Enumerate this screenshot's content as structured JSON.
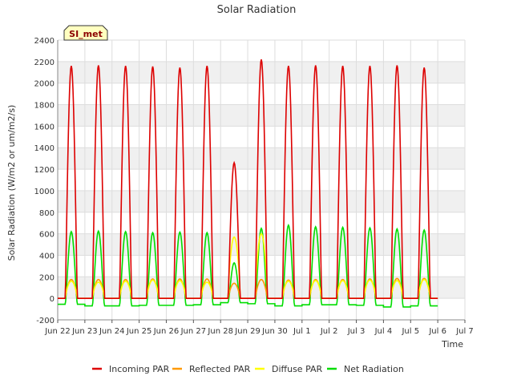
{
  "chart_data": {
    "type": "line",
    "title": "Solar Radiation",
    "xlabel": "Time",
    "ylabel": "Solar Radiation (W/m2 or um/m2/s)",
    "badge": "SI_met",
    "xlim": [
      0,
      15
    ],
    "ylim": [
      -200,
      2400
    ],
    "yticks": [
      -200,
      0,
      200,
      400,
      600,
      800,
      1000,
      1200,
      1400,
      1600,
      1800,
      2000,
      2200,
      2400
    ],
    "xticks": [
      {
        "pos": 0,
        "label": "Jun 22"
      },
      {
        "pos": 1,
        "label": "Jun 23"
      },
      {
        "pos": 2,
        "label": "Jun 24"
      },
      {
        "pos": 3,
        "label": "Jun 25"
      },
      {
        "pos": 4,
        "label": "Jun 26"
      },
      {
        "pos": 5,
        "label": "Jun 27"
      },
      {
        "pos": 6,
        "label": "Jun 28"
      },
      {
        "pos": 7,
        "label": "Jun 29"
      },
      {
        "pos": 8,
        "label": "Jun 30"
      },
      {
        "pos": 9,
        "label": "Jul 1"
      },
      {
        "pos": 10,
        "label": "Jul 2"
      },
      {
        "pos": 11,
        "label": "Jul 3"
      },
      {
        "pos": 12,
        "label": "Jul 4"
      },
      {
        "pos": 13,
        "label": "Jul 5"
      },
      {
        "pos": 14,
        "label": "Jul 6"
      },
      {
        "pos": 15,
        "label": "Jul 7"
      }
    ],
    "grid": true,
    "legend_position": "bottom",
    "days": [
      {
        "day": "Jun 22",
        "incoming_peak": 2160,
        "reflected_peak": 175,
        "diffuse_peak": 160,
        "net_peak": 620,
        "night_net": -55
      },
      {
        "day": "Jun 23",
        "incoming_peak": 2165,
        "reflected_peak": 175,
        "diffuse_peak": 150,
        "net_peak": 625,
        "night_net": -70
      },
      {
        "day": "Jun 24",
        "incoming_peak": 2160,
        "reflected_peak": 175,
        "diffuse_peak": 160,
        "net_peak": 620,
        "night_net": -70
      },
      {
        "day": "Jun 25",
        "incoming_peak": 2155,
        "reflected_peak": 180,
        "diffuse_peak": 170,
        "net_peak": 610,
        "night_net": -65
      },
      {
        "day": "Jun 26",
        "incoming_peak": 2145,
        "reflected_peak": 180,
        "diffuse_peak": 165,
        "net_peak": 615,
        "night_net": -65
      },
      {
        "day": "Jun 27",
        "incoming_peak": 2160,
        "reflected_peak": 180,
        "diffuse_peak": 150,
        "net_peak": 610,
        "night_net": -60
      },
      {
        "day": "Jun 28",
        "incoming_peak": 1260,
        "reflected_peak": 140,
        "diffuse_peak": 570,
        "net_peak": 330,
        "night_net": -40
      },
      {
        "day": "Jun 29",
        "incoming_peak": 2220,
        "reflected_peak": 175,
        "diffuse_peak": 600,
        "net_peak": 650,
        "night_net": -50
      },
      {
        "day": "Jun 30",
        "incoming_peak": 2160,
        "reflected_peak": 170,
        "diffuse_peak": 160,
        "net_peak": 680,
        "night_net": -70
      },
      {
        "day": "Jul 1",
        "incoming_peak": 2165,
        "reflected_peak": 175,
        "diffuse_peak": 165,
        "net_peak": 665,
        "night_net": -60
      },
      {
        "day": "Jul 2",
        "incoming_peak": 2160,
        "reflected_peak": 175,
        "diffuse_peak": 165,
        "net_peak": 660,
        "night_net": -60
      },
      {
        "day": "Jul 3",
        "incoming_peak": 2160,
        "reflected_peak": 180,
        "diffuse_peak": 170,
        "net_peak": 655,
        "night_net": -65
      },
      {
        "day": "Jul 4",
        "incoming_peak": 2165,
        "reflected_peak": 185,
        "diffuse_peak": 165,
        "net_peak": 645,
        "night_net": -80
      },
      {
        "day": "Jul 5",
        "incoming_peak": 2145,
        "reflected_peak": 185,
        "diffuse_peak": 175,
        "net_peak": 635,
        "night_net": -70
      }
    ],
    "series": [
      {
        "name": "Incoming PAR",
        "key": "incoming",
        "color": "#dd0000"
      },
      {
        "name": "Reflected PAR",
        "key": "reflected",
        "color": "#ff9900"
      },
      {
        "name": "Diffuse PAR",
        "key": "diffuse",
        "color": "#ffff00"
      },
      {
        "name": "Net Radiation",
        "key": "net",
        "color": "#00dd00"
      }
    ]
  }
}
